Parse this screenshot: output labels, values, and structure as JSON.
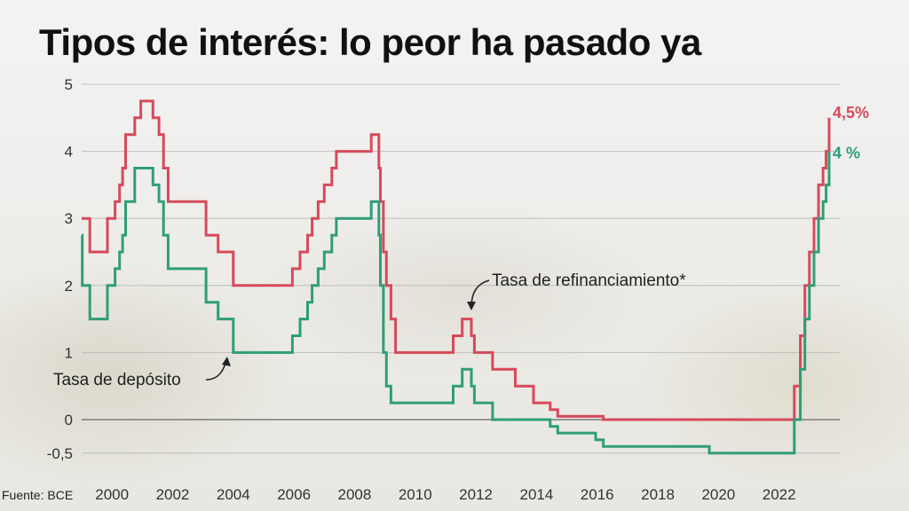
{
  "title": "Tipos de interés: lo peor ha pasado ya",
  "source": "Fuente: BCE",
  "chart_data": {
    "type": "line",
    "step": true,
    "xlim": [
      1999.0,
      2024.0
    ],
    "ylim": [
      -0.6,
      5.0
    ],
    "yticks": [
      5,
      4,
      3,
      2,
      1,
      0,
      -0.5
    ],
    "ytick_labels": [
      "5",
      "4",
      "3",
      "2",
      "1",
      "0",
      "-0,5"
    ],
    "xticks": [
      2000,
      2002,
      2004,
      2006,
      2008,
      2010,
      2012,
      2014,
      2016,
      2018,
      2020,
      2022
    ],
    "xtick_labels": [
      "2000",
      "2002",
      "2004",
      "2006",
      "2008",
      "2010",
      "2012",
      "2014",
      "2016",
      "2018",
      "2020",
      "2022"
    ],
    "grid": true,
    "colors": {
      "refinanciamiento": "#d64a5a",
      "deposito": "#2f9e78",
      "axis": "#666666",
      "grid": "#b5b5b5"
    },
    "series": [
      {
        "key": "refinanciamiento",
        "name": "Tasa de refinanciamiento*",
        "end_label": "4,5%",
        "x": [
          1999.0,
          1999.27,
          1999.85,
          2000.1,
          2000.25,
          2000.35,
          2000.45,
          2000.5,
          2000.75,
          2000.95,
          2001.35,
          2001.55,
          2001.7,
          2001.85,
          2003.1,
          2003.5,
          2004.0,
          2005.95,
          2006.2,
          2006.45,
          2006.6,
          2006.8,
          2007.0,
          2007.25,
          2007.4,
          2008.55,
          2008.8,
          2008.85,
          2008.95,
          2009.05,
          2009.2,
          2009.35,
          2011.25,
          2011.55,
          2011.85,
          2011.95,
          2012.55,
          2013.3,
          2013.9,
          2014.45,
          2014.7,
          2016.2,
          2022.5,
          2022.7,
          2022.85,
          2023.0,
          2023.15,
          2023.3,
          2023.45,
          2023.55,
          2023.65
        ],
        "y": [
          3.0,
          2.5,
          3.0,
          3.25,
          3.5,
          3.75,
          4.25,
          4.25,
          4.5,
          4.75,
          4.5,
          4.25,
          3.75,
          3.25,
          2.75,
          2.5,
          2.0,
          2.25,
          2.5,
          2.75,
          3.0,
          3.25,
          3.5,
          3.75,
          4.0,
          4.25,
          3.75,
          3.25,
          2.5,
          2.0,
          1.5,
          1.0,
          1.25,
          1.5,
          1.25,
          1.0,
          0.75,
          0.5,
          0.25,
          0.15,
          0.05,
          0.0,
          0.5,
          1.25,
          2.0,
          2.5,
          3.0,
          3.5,
          3.75,
          4.0,
          4.5
        ]
      },
      {
        "key": "deposito",
        "name": "Tasa de depósito",
        "end_label": "4 %",
        "x": [
          1999.0,
          1999.02,
          1999.27,
          1999.85,
          2000.1,
          2000.25,
          2000.35,
          2000.45,
          2000.5,
          2000.75,
          2001.35,
          2001.55,
          2001.7,
          2001.85,
          2003.1,
          2003.5,
          2004.0,
          2005.95,
          2006.2,
          2006.45,
          2006.6,
          2006.8,
          2007.0,
          2007.25,
          2007.4,
          2008.55,
          2008.8,
          2008.85,
          2008.95,
          2009.05,
          2009.2,
          2009.35,
          2011.25,
          2011.55,
          2011.85,
          2011.95,
          2012.55,
          2014.45,
          2014.7,
          2015.95,
          2016.2,
          2019.7,
          2022.5,
          2022.7,
          2022.85,
          2023.0,
          2023.15,
          2023.3,
          2023.45,
          2023.55,
          2023.65
        ],
        "y": [
          2.75,
          2.0,
          1.5,
          2.0,
          2.25,
          2.5,
          2.75,
          3.25,
          3.25,
          3.75,
          3.5,
          3.25,
          2.75,
          2.25,
          1.75,
          1.5,
          1.0,
          1.25,
          1.5,
          1.75,
          2.0,
          2.25,
          2.5,
          2.75,
          3.0,
          3.25,
          2.75,
          2.0,
          1.0,
          0.5,
          0.25,
          0.25,
          0.5,
          0.75,
          0.5,
          0.25,
          0.0,
          -0.1,
          -0.2,
          -0.3,
          -0.4,
          -0.5,
          0.0,
          0.75,
          1.5,
          2.0,
          2.5,
          3.0,
          3.25,
          3.5,
          4.0
        ]
      }
    ],
    "annotations": [
      {
        "text": "Tasa de refinanciamiento*",
        "series": "refinanciamiento"
      },
      {
        "text": "Tasa de depósito",
        "series": "deposito"
      }
    ]
  }
}
